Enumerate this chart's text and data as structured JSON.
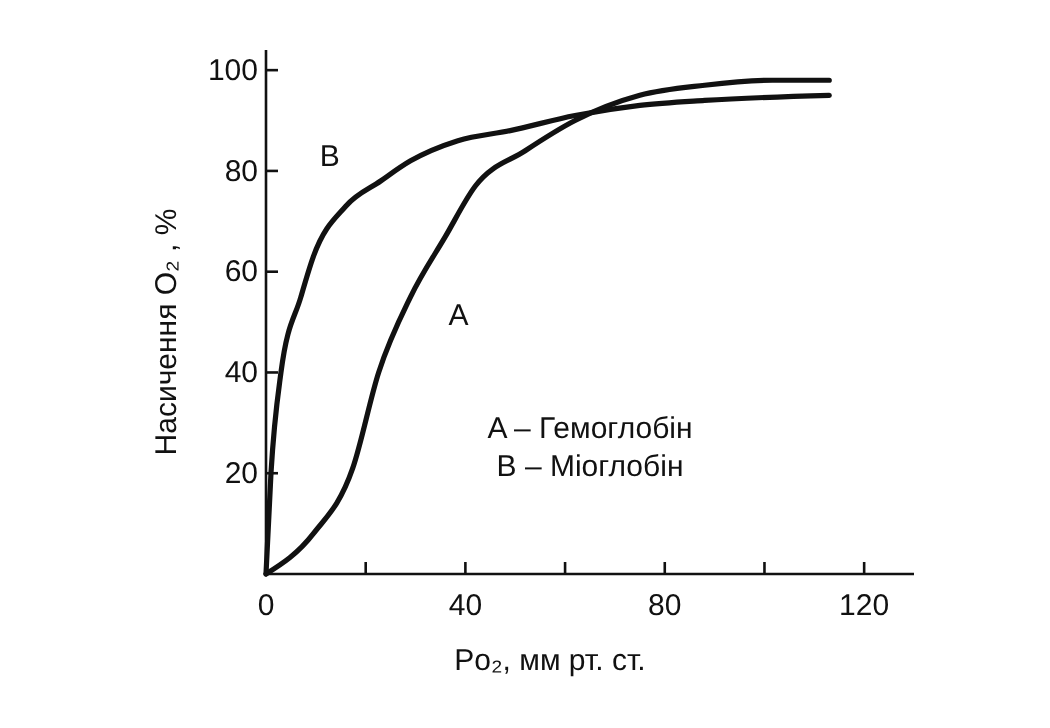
{
  "chart_data": {
    "type": "line",
    "xlabel": "Po₂, мм рт. ст.",
    "ylabel": "Насичення O₂ , %",
    "xlim": [
      0,
      130
    ],
    "ylim": [
      0,
      104
    ],
    "xticks": [
      0,
      {
        "value": 20,
        "label": null
      },
      40,
      {
        "value": 60,
        "label": null
      },
      80,
      {
        "value": 100,
        "label": null
      },
      120
    ],
    "yticks": [
      20,
      40,
      60,
      80,
      100
    ],
    "grid": false,
    "legend": false,
    "marker": "none",
    "line_style": "solid",
    "color": "#111111",
    "series": [
      {
        "name": "A",
        "x": [
          0,
          9.5,
          17.4,
          22.6,
          29,
          36,
          42,
          52,
          62,
          75,
          88,
          101.6,
          113
        ],
        "values": [
          0,
          8,
          21,
          40,
          55,
          67,
          77,
          84,
          90,
          95,
          97,
          98,
          98
        ]
      },
      {
        "name": "B",
        "x": [
          0,
          1,
          3,
          7,
          9.5,
          16,
          23,
          29,
          38.5,
          49,
          62,
          75,
          88,
          113
        ],
        "values": [
          0,
          20,
          40,
          55,
          63,
          73,
          78,
          82,
          86,
          88,
          91,
          93,
          94,
          95
        ]
      }
    ],
    "annotations": [
      "A – Гемоглобін",
      "B – Міоглобін"
    ]
  }
}
